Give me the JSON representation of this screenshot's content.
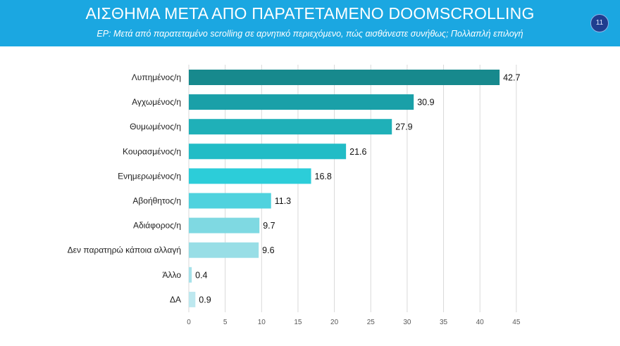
{
  "header": {
    "title": "ΑΙΣΘΗΜΑ ΜΕΤΑ ΑΠΟ ΠΑΡΑΤΕΤΑΜΕΝΟ DOOMSCROLLING",
    "subtitle": "ΕΡ: Μετά από παρατεταμένο scrolling σε αρνητικό περιεχόμενο, πώς αισθάνεστε συνήθως; Πολλαπλή επιλογή",
    "page_number": "11"
  },
  "chart_data": {
    "type": "bar",
    "orientation": "horizontal",
    "categories": [
      "Λυπημένος/η",
      "Αγχωμένος/η",
      "Θυμωμένος/η",
      "Κουρασμένος/η",
      "Ενημερωμένος/η",
      "Αβοήθητος/η",
      "Αδιάφορος/η",
      "Δεν παρατηρώ κάποια αλλαγή",
      "Άλλο",
      "ΔΑ"
    ],
    "values": [
      42.7,
      30.9,
      27.9,
      21.6,
      16.8,
      11.3,
      9.7,
      9.6,
      0.4,
      0.9
    ],
    "value_labels": [
      "42.7",
      "30.9",
      "27.9",
      "21.6",
      "16.8",
      "11.3",
      "9.7",
      "9.6",
      "0.4",
      "0.9"
    ],
    "xlim": [
      0,
      45
    ],
    "x_ticks": [
      "0",
      "5",
      "10",
      "15",
      "20",
      "25",
      "30",
      "35",
      "40",
      "45"
    ],
    "grid": true,
    "colors": [
      "#17898d",
      "#1aa0a8",
      "#1fb0b8",
      "#21bcc6",
      "#2ccdd9",
      "#4fd2de",
      "#7fd9e2",
      "#98dee6",
      "#a6e2ea",
      "#bde8ef"
    ]
  }
}
